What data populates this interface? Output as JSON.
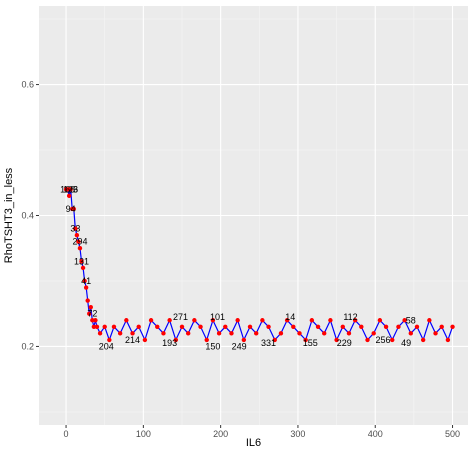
{
  "chart_data": {
    "type": "scatter",
    "title": "",
    "xlabel": "IL6",
    "ylabel": "RhoTSHT3_in_less",
    "xlim": [
      -35,
      520
    ],
    "ylim": [
      0.08,
      0.72
    ],
    "x_ticks": [
      "0",
      "100",
      "200",
      "300",
      "400",
      "500"
    ],
    "x_tick_values": [
      0,
      100,
      200,
      300,
      400,
      500
    ],
    "y_ticks": [
      "0.2",
      "0.4",
      "0.6"
    ],
    "y_tick_values": [
      0.2,
      0.4,
      0.6
    ],
    "grid": true,
    "legend": "none",
    "series": [
      {
        "style": "line+points",
        "line_color": "#0000ff",
        "point_color": "#ff0000",
        "x": [
          0,
          2,
          4,
          6,
          8,
          10,
          12,
          14,
          16,
          18,
          20,
          22,
          24,
          26,
          28,
          30,
          32,
          34,
          36,
          38,
          40,
          44,
          50,
          56,
          62,
          70,
          78,
          86,
          94,
          102,
          110,
          118,
          126,
          134,
          142,
          150,
          158,
          166,
          174,
          182,
          190,
          198,
          206,
          214,
          222,
          230,
          238,
          246,
          254,
          262,
          270,
          278,
          286,
          294,
          302,
          310,
          318,
          326,
          334,
          342,
          350,
          358,
          366,
          374,
          382,
          390,
          398,
          406,
          414,
          422,
          430,
          438,
          446,
          454,
          462,
          470,
          478,
          486,
          494,
          500
        ],
        "y": [
          0.44,
          0.44,
          0.43,
          0.44,
          0.41,
          0.41,
          0.38,
          0.37,
          0.36,
          0.35,
          0.33,
          0.32,
          0.3,
          0.29,
          0.27,
          0.25,
          0.26,
          0.24,
          0.23,
          0.24,
          0.23,
          0.22,
          0.23,
          0.21,
          0.23,
          0.22,
          0.24,
          0.22,
          0.23,
          0.21,
          0.24,
          0.23,
          0.22,
          0.24,
          0.21,
          0.23,
          0.22,
          0.24,
          0.23,
          0.21,
          0.24,
          0.22,
          0.23,
          0.22,
          0.24,
          0.21,
          0.23,
          0.22,
          0.24,
          0.23,
          0.21,
          0.22,
          0.24,
          0.23,
          0.22,
          0.21,
          0.24,
          0.23,
          0.22,
          0.24,
          0.21,
          0.23,
          0.22,
          0.24,
          0.23,
          0.21,
          0.22,
          0.24,
          0.23,
          0.21,
          0.23,
          0.24,
          0.22,
          0.23,
          0.21,
          0.24,
          0.22,
          0.23,
          0.21,
          0.23
        ]
      }
    ],
    "annotations": [
      {
        "text": "166",
        "x": 2,
        "y": 0.44
      },
      {
        "text": "126",
        "x": 6,
        "y": 0.44
      },
      {
        "text": "3",
        "x": 12,
        "y": 0.44
      },
      {
        "text": "94",
        "x": 6,
        "y": 0.41
      },
      {
        "text": "33",
        "x": 12,
        "y": 0.38
      },
      {
        "text": "294",
        "x": 18,
        "y": 0.36
      },
      {
        "text": "131",
        "x": 20,
        "y": 0.33
      },
      {
        "text": "41",
        "x": 26,
        "y": 0.3
      },
      {
        "text": "72",
        "x": 34,
        "y": 0.25
      },
      {
        "text": "204",
        "x": 52,
        "y": 0.2
      },
      {
        "text": "214",
        "x": 86,
        "y": 0.21
      },
      {
        "text": "193",
        "x": 134,
        "y": 0.205
      },
      {
        "text": "150",
        "x": 190,
        "y": 0.2
      },
      {
        "text": "249",
        "x": 224,
        "y": 0.2
      },
      {
        "text": "331",
        "x": 262,
        "y": 0.205
      },
      {
        "text": "155",
        "x": 316,
        "y": 0.205
      },
      {
        "text": "229",
        "x": 360,
        "y": 0.205
      },
      {
        "text": "256",
        "x": 410,
        "y": 0.21
      },
      {
        "text": "49",
        "x": 440,
        "y": 0.205
      },
      {
        "text": "271",
        "x": 148,
        "y": 0.245
      },
      {
        "text": "101",
        "x": 196,
        "y": 0.245
      },
      {
        "text": "14",
        "x": 290,
        "y": 0.245
      },
      {
        "text": "112",
        "x": 368,
        "y": 0.245
      },
      {
        "text": "58",
        "x": 446,
        "y": 0.24
      }
    ]
  }
}
